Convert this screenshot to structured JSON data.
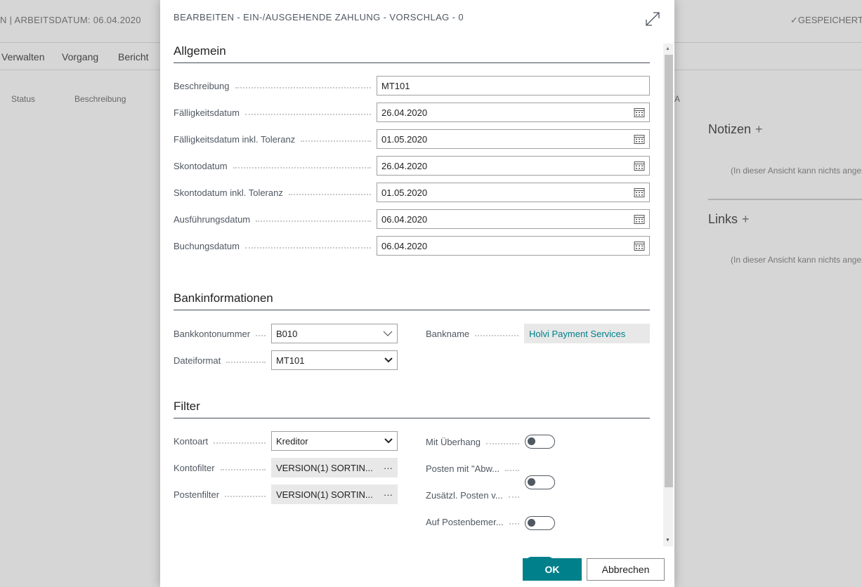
{
  "background": {
    "title": "N | ARBEITSDATUM: 06.04.2020",
    "saved": "GESPEICHERT",
    "menu": [
      "Verwalten",
      "Vorgang",
      "Bericht"
    ],
    "columns": [
      "Status",
      "Beschreibung",
      "A"
    ],
    "factbox": {
      "notes": "Notizen",
      "links": "Links",
      "empty_notes": "(In dieser Ansicht kann nichts angez",
      "empty_links": "(In dieser Ansicht kann nichts angez"
    }
  },
  "dialog": {
    "title": "BEARBEITEN - EIN-/AUSGEHENDE ZAHLUNG - VORSCHLAG - 0",
    "sections": {
      "general": "Allgemein",
      "bank": "Bankinformationen",
      "filter": "Filter"
    },
    "general_fields": [
      {
        "label": "Beschreibung",
        "value": "MT101",
        "date": false
      },
      {
        "label": "Fälligkeitsdatum",
        "value": "26.04.2020",
        "date": true
      },
      {
        "label": "Fälligkeitsdatum inkl. Toleranz",
        "value": "01.05.2020",
        "date": true
      },
      {
        "label": "Skontodatum",
        "value": "26.04.2020",
        "date": true
      },
      {
        "label": "Skontodatum inkl. Toleranz",
        "value": "01.05.2020",
        "date": true
      },
      {
        "label": "Ausführungsdatum",
        "value": "06.04.2020",
        "date": true
      },
      {
        "label": "Buchungsdatum",
        "value": "06.04.2020",
        "date": true
      }
    ],
    "bank": {
      "account_label": "Bankkontonummer",
      "account_value": "B010",
      "format_label": "Dateiformat",
      "format_value": "MT101",
      "name_label": "Bankname",
      "name_value": "Holvi Payment Services"
    },
    "filter": {
      "account_type_label": "Kontoart",
      "account_type_value": "Kreditor",
      "account_filter_label": "Kontofilter",
      "account_filter_value": "VERSION(1) SORTIN...",
      "entry_filter_label": "Postenfilter",
      "entry_filter_value": "VERSION(1) SORTIN...",
      "toggles": [
        {
          "label": "Mit Überhang",
          "on": false
        },
        {
          "label": "Posten mit \"Abw...",
          "on": false
        },
        {
          "label": "Zusätzl. Posten v...",
          "on": false
        },
        {
          "label": "Auf Postenbemer...",
          "on": true
        }
      ]
    },
    "ok": "OK",
    "cancel": "Abbrechen",
    "accent": "#00808a"
  }
}
